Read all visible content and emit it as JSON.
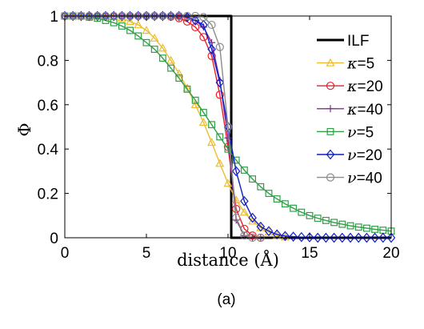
{
  "chart_data": {
    "type": "line",
    "title": "",
    "caption": "(a)",
    "xlabel": "distance (Å)",
    "ylabel": "Φ",
    "xlim": [
      0,
      20
    ],
    "ylim": [
      0,
      1
    ],
    "xticks": [
      0,
      5,
      10,
      15,
      20
    ],
    "yticks": [
      0,
      0.2,
      0.4,
      0.6,
      0.8,
      1
    ],
    "xtick_labels": [
      "0",
      "5",
      "10",
      "15",
      "20"
    ],
    "ytick_labels": [
      "0",
      "0.2",
      "0.4",
      "0.6",
      "0.8",
      "1"
    ],
    "grid": false,
    "legend_position": "top-right",
    "series": [
      {
        "name": "ILF",
        "legend_var": "",
        "legend_eq": "ILF",
        "color": "#000000",
        "marker": "none",
        "line_width": 3,
        "x": [
          0,
          10.2,
          10.2,
          20
        ],
        "y": [
          1,
          1,
          0,
          0
        ]
      },
      {
        "name": "κ=5",
        "legend_var": "κ",
        "legend_eq": "=5",
        "color": "#ecbd30",
        "marker": "triangle",
        "line_width": 1.4,
        "x": [
          0,
          0.5,
          1,
          1.5,
          2,
          2.5,
          3,
          3.5,
          4,
          4.5,
          5,
          5.5,
          6,
          6.5,
          7,
          7.5,
          8,
          8.5,
          9,
          9.5,
          10,
          10.5,
          11,
          11.5,
          12,
          12.5,
          13,
          13.5
        ],
        "y": [
          1,
          1,
          1,
          1,
          1,
          1,
          0.997,
          0.99,
          0.975,
          0.96,
          0.935,
          0.9,
          0.855,
          0.8,
          0.74,
          0.675,
          0.6,
          0.52,
          0.43,
          0.335,
          0.245,
          0.17,
          0.115,
          0.075,
          0.045,
          0.025,
          0.01,
          0.003
        ]
      },
      {
        "name": "κ=20",
        "legend_var": "κ",
        "legend_eq": "=20",
        "color": "#e8212a",
        "marker": "circle",
        "line_width": 1.4,
        "x": [
          0,
          0.5,
          1,
          1.5,
          2,
          2.5,
          3,
          3.5,
          4,
          4.5,
          5,
          5.5,
          6,
          6.5,
          7,
          7.5,
          8,
          8.5,
          9,
          9.5,
          10,
          10.5,
          11,
          11.5,
          12
        ],
        "y": [
          1,
          1,
          1,
          1,
          1,
          1,
          1,
          1,
          1,
          1,
          1,
          1,
          1,
          0.997,
          0.99,
          0.975,
          0.95,
          0.905,
          0.82,
          0.645,
          0.41,
          0.13,
          0.04,
          0.01,
          0
        ]
      },
      {
        "name": "κ=40",
        "legend_var": "κ",
        "legend_eq": "=40",
        "color": "#7e2f8e",
        "marker": "plus",
        "line_width": 1.4,
        "x": [
          0,
          0.5,
          1,
          1.5,
          2,
          2.5,
          3,
          3.5,
          4,
          4.5,
          5,
          5.5,
          6,
          6.5,
          7,
          7.5,
          8,
          8.5,
          9,
          9.5,
          10,
          10.5,
          11,
          11.5,
          12
        ],
        "y": [
          1,
          1,
          1,
          1,
          1,
          1,
          1,
          1,
          1,
          1,
          1,
          1,
          1,
          1,
          1,
          0.995,
          0.98,
          0.95,
          0.88,
          0.71,
          0.45,
          0.08,
          0.01,
          0,
          0
        ]
      },
      {
        "name": "ν=5",
        "legend_var": "ν",
        "legend_eq": "=5",
        "color": "#2f9e47",
        "marker": "square",
        "line_width": 1.4,
        "x": [
          0,
          0.5,
          1,
          1.5,
          2,
          2.5,
          3,
          3.5,
          4,
          4.5,
          5,
          5.5,
          6,
          6.5,
          7,
          7.5,
          8,
          8.5,
          9,
          9.5,
          10,
          10.5,
          11,
          11.5,
          12,
          12.5,
          13,
          13.5,
          14,
          14.5,
          15,
          15.5,
          16,
          16.5,
          17,
          17.5,
          18,
          18.5,
          19,
          19.5,
          20
        ],
        "y": [
          1,
          1,
          1,
          0.995,
          0.99,
          0.98,
          0.97,
          0.955,
          0.935,
          0.91,
          0.88,
          0.85,
          0.81,
          0.765,
          0.72,
          0.67,
          0.62,
          0.565,
          0.51,
          0.455,
          0.4,
          0.35,
          0.305,
          0.265,
          0.23,
          0.2,
          0.175,
          0.153,
          0.133,
          0.115,
          0.1,
          0.088,
          0.078,
          0.069,
          0.061,
          0.054,
          0.048,
          0.043,
          0.038,
          0.034,
          0.03
        ]
      },
      {
        "name": "ν=20",
        "legend_var": "ν",
        "legend_eq": "=20",
        "color": "#0e1ec8",
        "marker": "diamond",
        "line_width": 1.4,
        "x": [
          0,
          0.5,
          1,
          1.5,
          2,
          2.5,
          3,
          3.5,
          4,
          4.5,
          5,
          5.5,
          6,
          6.5,
          7,
          7.5,
          8,
          8.5,
          9,
          9.5,
          10,
          10.5,
          11,
          11.5,
          12,
          12.5,
          13,
          13.5,
          14,
          14.5,
          15,
          15.5,
          16,
          16.5,
          17,
          17.5,
          18,
          18.5,
          19,
          19.5,
          20
        ],
        "y": [
          1,
          1,
          1,
          1,
          1,
          1,
          1,
          1,
          1,
          1,
          1,
          1,
          1,
          1,
          1,
          0.995,
          0.98,
          0.96,
          0.85,
          0.7,
          0.5,
          0.3,
          0.165,
          0.09,
          0.05,
          0.03,
          0.015,
          0.008,
          0.005,
          0.003,
          0.002,
          0,
          0,
          0,
          0,
          0,
          0,
          0,
          0,
          0,
          0
        ]
      },
      {
        "name": "ν=40",
        "legend_var": "ν",
        "legend_eq": "=40",
        "color": "#8c8c8c",
        "marker": "circle",
        "line_width": 1.4,
        "x": [
          0,
          0.5,
          1,
          1.5,
          2,
          2.5,
          3,
          3.5,
          4,
          4.5,
          5,
          5.5,
          6,
          6.5,
          7,
          7.5,
          8,
          8.5,
          9,
          9.5,
          10,
          10.5,
          11,
          11.5,
          12
        ],
        "y": [
          1,
          1,
          1,
          1,
          1,
          1,
          1,
          1,
          1,
          1,
          1,
          1,
          1,
          1,
          1,
          1,
          1,
          0.995,
          0.96,
          0.86,
          0.5,
          0.09,
          0.01,
          0,
          0
        ]
      }
    ]
  }
}
